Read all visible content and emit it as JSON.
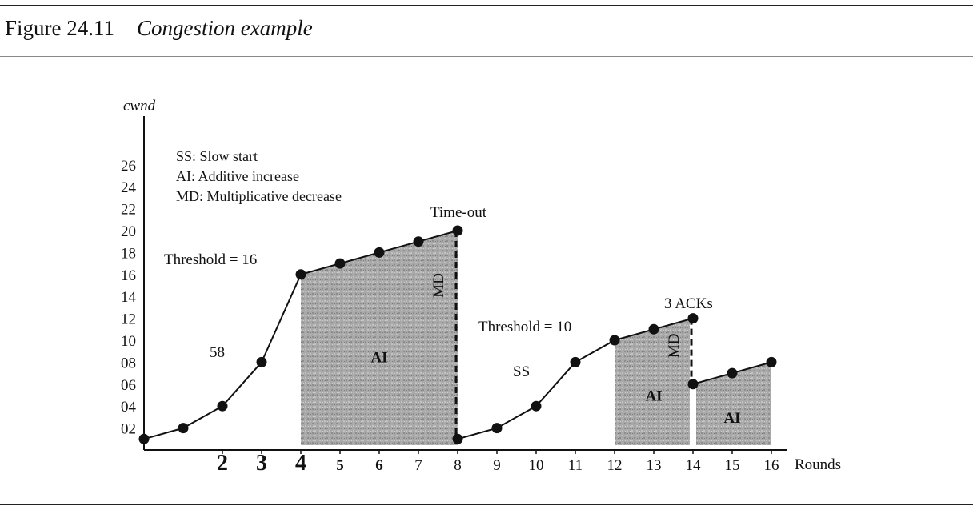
{
  "figure": {
    "number": "Figure 24.11",
    "caption": "Congestion example"
  },
  "legend": [
    "SS: Slow start",
    "AI: Additive increase",
    "MD: Multiplicative decrease"
  ],
  "chart_data": {
    "type": "line",
    "ylabel": "cwnd",
    "xlabel": "Rounds",
    "ylim": [
      0,
      28
    ],
    "xlim": [
      0,
      16
    ],
    "y_tick_labels": [
      "02",
      "04",
      "06",
      "08",
      "10",
      "12",
      "14",
      "16",
      "18",
      "20",
      "22",
      "24",
      "26"
    ],
    "y_tick_values": [
      2,
      4,
      6,
      8,
      10,
      12,
      14,
      16,
      18,
      20,
      22,
      24,
      26
    ],
    "x_tick_labels": [
      "2",
      "3",
      "4",
      "5",
      "6",
      "7",
      "8",
      "9",
      "10",
      "11",
      "12",
      "13",
      "14",
      "15",
      "16"
    ],
    "x_tick_values": [
      2,
      3,
      4,
      5,
      6,
      7,
      8,
      9,
      10,
      11,
      12,
      13,
      14,
      15,
      16
    ],
    "series": [
      {
        "points": [
          [
            0,
            1
          ],
          [
            1,
            2
          ],
          [
            2,
            4
          ],
          [
            3,
            8
          ],
          [
            4,
            16
          ],
          [
            5,
            17
          ],
          [
            6,
            18
          ],
          [
            7,
            19
          ],
          [
            8,
            20
          ],
          [
            8,
            1
          ],
          [
            9,
            2
          ],
          [
            10,
            4
          ],
          [
            11,
            8
          ],
          [
            12,
            10
          ],
          [
            13,
            11
          ],
          [
            14,
            12
          ],
          [
            14,
            6
          ],
          [
            15,
            7
          ],
          [
            16,
            8
          ]
        ]
      }
    ],
    "shaded_regions": [
      {
        "x": [
          4,
          8
        ],
        "label": "AI"
      },
      {
        "x": [
          12,
          14
        ],
        "label": "AI"
      },
      {
        "x": [
          14,
          16
        ],
        "label": "AI"
      }
    ],
    "drops": [
      {
        "x": 8,
        "from": 20,
        "to": 1,
        "label": "MD"
      },
      {
        "x": 14,
        "from": 12,
        "to": 6,
        "label": "MD"
      }
    ],
    "annotations": [
      {
        "text": "Time-out",
        "x": 8,
        "y": 20
      },
      {
        "text": "Threshold = 16",
        "x": 4,
        "y": 16
      },
      {
        "text": "Threshold = 10",
        "x": 12,
        "y": 10
      },
      {
        "text": "3 ACKs",
        "x": 14,
        "y": 12
      },
      {
        "text": "58",
        "x": 2,
        "y": 8
      },
      {
        "text": "SS",
        "x": 10,
        "y": 7
      }
    ]
  }
}
